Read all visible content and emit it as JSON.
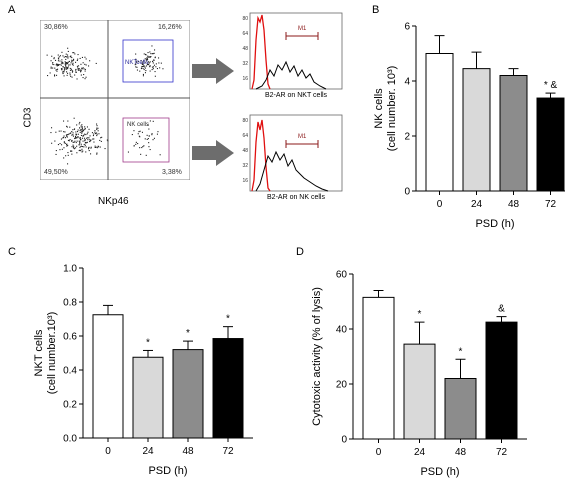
{
  "panel_labels": {
    "A": "A",
    "B": "B",
    "C": "C",
    "D": "D"
  },
  "flow": {
    "ylabel": "CD3",
    "xlabel": "NKp46",
    "quadrants": {
      "ul": "30,86%",
      "ur": "16,26%",
      "ll": "49,50%",
      "lr": "3,38%"
    },
    "gates": {
      "nkt": "NKTcells",
      "nk": "NK cells"
    }
  },
  "histograms": [
    {
      "xlabel": "B2-AR on NKT cells",
      "marker": "M1",
      "yticks": [
        "80",
        "64",
        "48",
        "32",
        "16"
      ]
    },
    {
      "xlabel": "B2-AR on NK cells",
      "marker": "M1",
      "yticks": [
        "80",
        "64",
        "48",
        "32",
        "16"
      ]
    }
  ],
  "colors": {
    "white": "#ffffff",
    "light": "#d9d9d9",
    "mid": "#8c8c8c",
    "black": "#000000",
    "red": "#e01010"
  },
  "chart_data": [
    {
      "id": "B",
      "type": "bar",
      "categories": [
        "0",
        "24",
        "48",
        "72"
      ],
      "values": [
        5.0,
        4.45,
        4.2,
        3.38
      ],
      "errors": [
        0.65,
        0.6,
        0.25,
        0.18
      ],
      "annotations": [
        "",
        "",
        "",
        "* &"
      ],
      "xlabel": "PSD (h)",
      "ylabel_lines": [
        "NK cells",
        "(cell number. 10³)"
      ],
      "ylim": [
        0,
        6
      ],
      "yticks": [
        "0",
        "2",
        "4",
        "6"
      ]
    },
    {
      "id": "C",
      "type": "bar",
      "categories": [
        "0",
        "24",
        "48",
        "72"
      ],
      "values": [
        0.725,
        0.475,
        0.52,
        0.585
      ],
      "errors": [
        0.055,
        0.04,
        0.05,
        0.07
      ],
      "annotations": [
        "",
        "*",
        "*",
        "*"
      ],
      "xlabel": "PSD (h)",
      "ylabel_lines": [
        "NKT cells",
        "(cell number.10³)"
      ],
      "ylim": [
        0,
        1.0
      ],
      "yticks": [
        "0.0",
        "0.2",
        "0.4",
        "0.6",
        "0.8",
        "1.0"
      ]
    },
    {
      "id": "D",
      "type": "bar",
      "categories": [
        "0",
        "24",
        "48",
        "72"
      ],
      "values": [
        51.5,
        34.5,
        22,
        42.5
      ],
      "errors": [
        2.5,
        8,
        7,
        2
      ],
      "annotations": [
        "",
        "*",
        "*",
        "&"
      ],
      "xlabel": "PSD (h)",
      "ylabel_lines": [
        "Cytotoxic activity (% of lysis)"
      ],
      "ylim": [
        0,
        60
      ],
      "yticks": [
        "0",
        "20",
        "40",
        "60"
      ]
    }
  ]
}
